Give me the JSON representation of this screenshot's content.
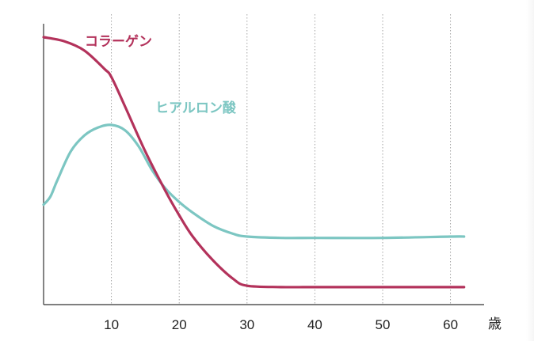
{
  "chart_data": {
    "type": "line",
    "title": "",
    "xlabel": "",
    "ylabel": "",
    "x_unit_label": "歳",
    "xlim": [
      0,
      65
    ],
    "ylim": [
      0,
      100
    ],
    "x_ticks": [
      10,
      20,
      30,
      40,
      50,
      60
    ],
    "x_tick_labels": [
      "10",
      "20",
      "30",
      "40",
      "50",
      "60"
    ],
    "grid": "vertical dotted lines at ticks",
    "y_axis_labels": false,
    "series": [
      {
        "name": "コラーゲン",
        "color": "#b3325b",
        "x": [
          0,
          3,
          6,
          9,
          10,
          12,
          15,
          18,
          20,
          22,
          25,
          28,
          30,
          35,
          40,
          50,
          60,
          62
        ],
        "y": [
          100,
          98.5,
          95,
          88,
          85,
          74,
          57,
          42,
          33,
          25,
          16,
          9,
          6.5,
          6,
          6,
          6,
          6,
          6
        ]
      },
      {
        "name": "ヒアルロン酸",
        "color": "#7cc6c2",
        "x": [
          0,
          1,
          2,
          4,
          6,
          8,
          10,
          12,
          14,
          16,
          18,
          20,
          22,
          25,
          28,
          30,
          35,
          40,
          50,
          60,
          62
        ],
        "y": [
          37,
          40,
          46,
          57,
          63,
          66,
          67,
          65,
          59,
          50,
          43,
          38,
          34,
          29,
          26,
          25,
          24.5,
          24.5,
          24.5,
          25,
          25
        ]
      }
    ]
  }
}
